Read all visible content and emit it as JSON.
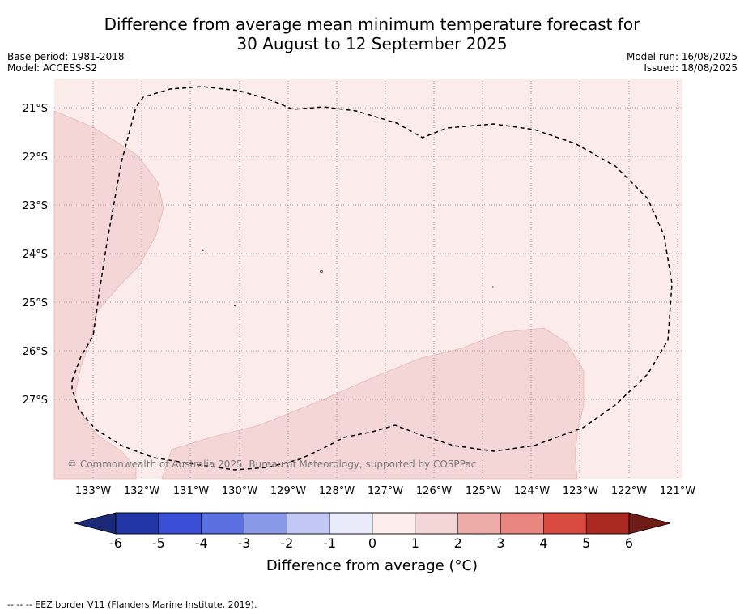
{
  "title": {
    "line1": "Difference from average mean minimum temperature forecast for",
    "line2": "30 August to 12 September 2025"
  },
  "meta": {
    "base_period": "Base period: 1981-2018",
    "model": "Model: ACCESS-S2",
    "model_run": "Model run: 16/08/2025",
    "issued": "Issued: 18/08/2025"
  },
  "map": {
    "latitudes": [
      "21°S",
      "22°S",
      "23°S",
      "24°S",
      "25°S",
      "26°S",
      "27°S"
    ],
    "longitudes": [
      "133°W",
      "132°W",
      "131°W",
      "130°W",
      "129°W",
      "128°W",
      "127°W",
      "126°W",
      "125°W",
      "124°W",
      "123°W",
      "122°W",
      "121°W"
    ],
    "copyright": "© Commonwealth of Australia 2025, Bureau of Meteorology, supported by COSPPac",
    "background_color": "#fbeceb",
    "anomaly_zone_color": "#f5d6d6"
  },
  "colorbar": {
    "ticks": [
      "-6",
      "-5",
      "-4",
      "-3",
      "-2",
      "-1",
      "0",
      "1",
      "2",
      "3",
      "4",
      "5",
      "6"
    ],
    "colors": [
      "#2236a8",
      "#3a4fd6",
      "#5a6fe0",
      "#8a98ea",
      "#c2c8f5",
      "#e9ebfb",
      "#fdeeed",
      "#f5d6d6",
      "#eeaca8",
      "#e8857f",
      "#d94a40",
      "#aa2a22"
    ],
    "low_extend_color": "#1b2a78",
    "high_extend_color": "#6f1c18",
    "label": "Difference from average (°C)"
  },
  "footnote": "--  --  -- EEZ border V11 (Flanders Marine Institute, 2019)."
}
